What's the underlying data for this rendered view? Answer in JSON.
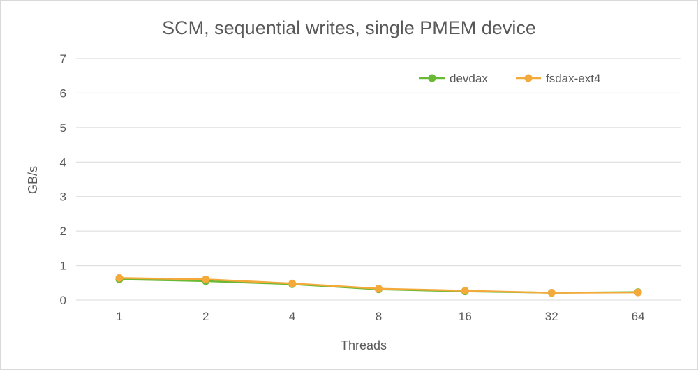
{
  "chart_data": {
    "type": "line",
    "title": "SCM, sequential writes, single PMEM device",
    "xlabel": "Threads",
    "ylabel": "GB/s",
    "categories": [
      "1",
      "2",
      "4",
      "8",
      "16",
      "32",
      "64"
    ],
    "ylim": [
      0,
      7
    ],
    "yticks": [
      0,
      1,
      2,
      3,
      4,
      5,
      6,
      7
    ],
    "grid": true,
    "legend_position": "top-right",
    "series": [
      {
        "name": "devdax",
        "color": "#6ab934",
        "values": [
          0.6,
          0.55,
          0.46,
          0.31,
          0.25,
          0.21,
          0.23
        ]
      },
      {
        "name": "fsdax-ext4",
        "color": "#f4a93b",
        "values": [
          0.64,
          0.6,
          0.48,
          0.33,
          0.27,
          0.21,
          0.22
        ]
      }
    ]
  }
}
